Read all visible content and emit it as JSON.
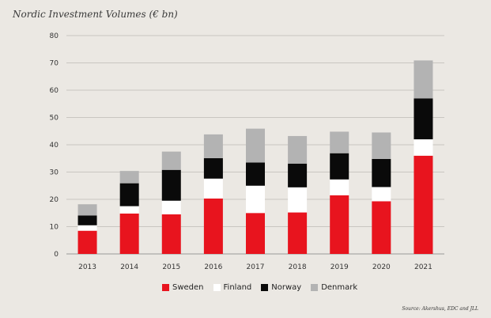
{
  "chart_data": {
    "type": "bar",
    "stacked": true,
    "title": "Nordic Investment Volumes (€ bn)",
    "categories": [
      "2013",
      "2014",
      "2015",
      "2016",
      "2017",
      "2018",
      "2019",
      "2020",
      "2021"
    ],
    "series": [
      {
        "name": "Sweden",
        "color": "#e8141e",
        "values": [
          8.5,
          14.8,
          14.5,
          20.3,
          15.0,
          15.2,
          21.5,
          19.3,
          36.0
        ]
      },
      {
        "name": "Finland",
        "color": "#ffffff",
        "values": [
          2.0,
          2.7,
          5.0,
          7.3,
          10.0,
          9.2,
          5.8,
          5.2,
          6.0
        ]
      },
      {
        "name": "Norway",
        "color": "#0a0a0a",
        "values": [
          3.6,
          8.4,
          11.3,
          7.5,
          8.5,
          8.7,
          9.6,
          10.3,
          15.0
        ]
      },
      {
        "name": "Denmark",
        "color": "#b3b3b3",
        "values": [
          4.1,
          4.5,
          6.7,
          8.7,
          12.4,
          10.1,
          7.9,
          9.7,
          13.9
        ]
      }
    ],
    "yticks": [
      0,
      10,
      20,
      30,
      40,
      50,
      60,
      70,
      80
    ],
    "ylim": [
      0,
      80
    ],
    "grid": true,
    "legend_position": "bottom",
    "source": "Source: Akershus, EDC and JLL"
  }
}
